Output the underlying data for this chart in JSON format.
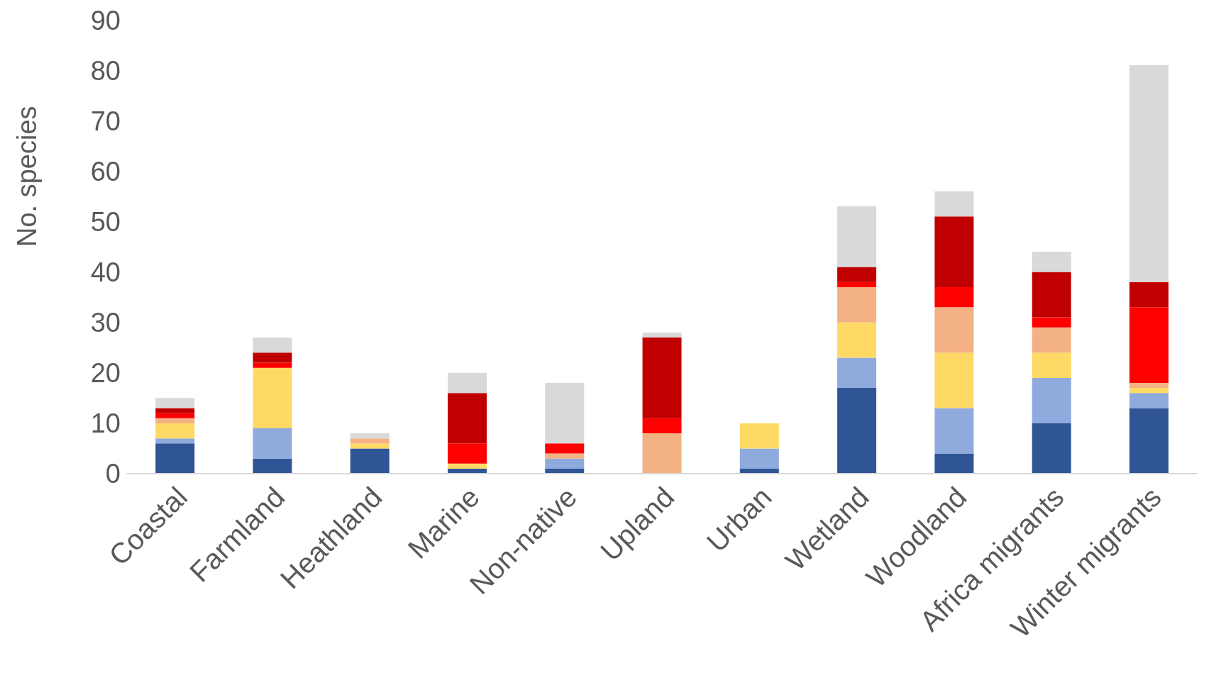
{
  "chart_data": {
    "type": "bar",
    "stacked": true,
    "ylabel": "No. species",
    "categories": [
      "Coastal",
      "Farmland",
      "Heathland",
      "Marine",
      "Non-native",
      "Upland",
      "Urban",
      "Wetland",
      "Woodland",
      "Africa migrants",
      "Winter migrants"
    ],
    "series": [
      {
        "color": "#2f5597",
        "values": [
          6,
          3,
          5,
          1,
          1,
          0,
          1,
          17,
          4,
          10,
          13
        ]
      },
      {
        "color": "#8faadc",
        "values": [
          1,
          6,
          0,
          0,
          2,
          0,
          4,
          6,
          9,
          9,
          3
        ]
      },
      {
        "color": "#ffd966",
        "values": [
          3,
          12,
          1,
          1,
          0,
          0,
          5,
          7,
          11,
          5,
          1
        ]
      },
      {
        "color": "#f4b183",
        "values": [
          1,
          0,
          1,
          0,
          1,
          8,
          0,
          7,
          9,
          5,
          1
        ]
      },
      {
        "color": "#ff0000",
        "values": [
          1,
          1,
          0,
          4,
          2,
          3,
          0,
          1,
          4,
          2,
          15
        ]
      },
      {
        "color": "#c00000",
        "values": [
          1,
          2,
          0,
          10,
          0,
          16,
          0,
          3,
          14,
          9,
          5
        ]
      },
      {
        "color": "#d9d9d9",
        "values": [
          2,
          3,
          1,
          4,
          12,
          1,
          0,
          12,
          5,
          4,
          43
        ]
      }
    ],
    "ylim": [
      0,
      90
    ],
    "yticks": [
      0,
      10,
      20,
      30,
      40,
      50,
      60,
      70,
      80,
      90
    ],
    "grid": false,
    "legend": false
  }
}
